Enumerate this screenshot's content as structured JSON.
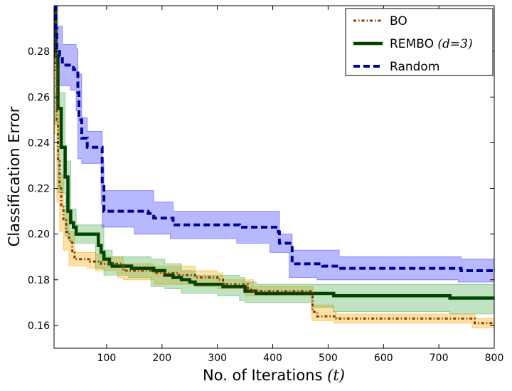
{
  "chart_data": {
    "type": "line",
    "xlabel": "No. of Iterations",
    "xlabel_math": "(t)",
    "ylabel": "Classification Error",
    "xlim": [
      5,
      800
    ],
    "ylim": [
      0.15,
      0.3
    ],
    "xticks": [
      100,
      200,
      300,
      400,
      500,
      600,
      700,
      800
    ],
    "yticks": [
      0.16,
      0.18,
      0.2,
      0.22,
      0.24,
      0.26,
      0.28
    ],
    "ytick_labels": [
      "0.16",
      "0.18",
      "0.20",
      "0.22",
      "0.24",
      "0.26",
      "0.28"
    ],
    "grid": false,
    "legend_position": "top-right",
    "series": [
      {
        "name": "BO",
        "line_color": "#8B3A00",
        "band_color": "#FFA500",
        "style": "dashdot",
        "points": [
          [
            5,
            0.3
          ],
          [
            8,
            0.272
          ],
          [
            10,
            0.25
          ],
          [
            12,
            0.232
          ],
          [
            15,
            0.22
          ],
          [
            18,
            0.212
          ],
          [
            22,
            0.206
          ],
          [
            27,
            0.201
          ],
          [
            32,
            0.197
          ],
          [
            38,
            0.192
          ],
          [
            42,
            0.189
          ],
          [
            65,
            0.189
          ],
          [
            70,
            0.188
          ],
          [
            80,
            0.188
          ],
          [
            90,
            0.187
          ],
          [
            100,
            0.187
          ],
          [
            120,
            0.187
          ],
          [
            130,
            0.184
          ],
          [
            160,
            0.184
          ],
          [
            175,
            0.184
          ],
          [
            185,
            0.183
          ],
          [
            230,
            0.182
          ],
          [
            260,
            0.181
          ],
          [
            300,
            0.18
          ],
          [
            310,
            0.178
          ],
          [
            350,
            0.178
          ],
          [
            355,
            0.176
          ],
          [
            365,
            0.175
          ],
          [
            470,
            0.175
          ],
          [
            472,
            0.166
          ],
          [
            480,
            0.164
          ],
          [
            510,
            0.164
          ],
          [
            515,
            0.163
          ],
          [
            760,
            0.163
          ],
          [
            765,
            0.161
          ],
          [
            800,
            0.161
          ]
        ],
        "band": [
          [
            5,
            0.3,
            0.3
          ],
          [
            10,
            0.244,
            0.256
          ],
          [
            15,
            0.214,
            0.226
          ],
          [
            22,
            0.201,
            0.211
          ],
          [
            32,
            0.193,
            0.201
          ],
          [
            42,
            0.186,
            0.192
          ],
          [
            65,
            0.186,
            0.192
          ],
          [
            80,
            0.185,
            0.191
          ],
          [
            100,
            0.184,
            0.19
          ],
          [
            120,
            0.184,
            0.19
          ],
          [
            130,
            0.181,
            0.187
          ],
          [
            185,
            0.18,
            0.186
          ],
          [
            260,
            0.178,
            0.184
          ],
          [
            300,
            0.177,
            0.183
          ],
          [
            310,
            0.176,
            0.18
          ],
          [
            350,
            0.176,
            0.18
          ],
          [
            365,
            0.173,
            0.177
          ],
          [
            470,
            0.173,
            0.177
          ],
          [
            472,
            0.163,
            0.169
          ],
          [
            510,
            0.162,
            0.166
          ],
          [
            515,
            0.161,
            0.165
          ],
          [
            760,
            0.161,
            0.165
          ],
          [
            765,
            0.159,
            0.163
          ],
          [
            800,
            0.159,
            0.163
          ]
        ]
      },
      {
        "name": "REMBO",
        "name_math": "(d=3)",
        "line_color": "#004400",
        "band_color": "#4CAF50",
        "style": "solid",
        "points": [
          [
            5,
            0.3
          ],
          [
            8,
            0.278
          ],
          [
            12,
            0.255
          ],
          [
            18,
            0.238
          ],
          [
            25,
            0.225
          ],
          [
            30,
            0.21
          ],
          [
            35,
            0.205
          ],
          [
            40,
            0.203
          ],
          [
            45,
            0.2
          ],
          [
            80,
            0.2
          ],
          [
            85,
            0.195
          ],
          [
            90,
            0.192
          ],
          [
            95,
            0.189
          ],
          [
            105,
            0.187
          ],
          [
            110,
            0.186
          ],
          [
            140,
            0.186
          ],
          [
            145,
            0.185
          ],
          [
            180,
            0.185
          ],
          [
            185,
            0.184
          ],
          [
            200,
            0.184
          ],
          [
            205,
            0.182
          ],
          [
            220,
            0.181
          ],
          [
            235,
            0.18
          ],
          [
            250,
            0.179
          ],
          [
            260,
            0.178
          ],
          [
            300,
            0.178
          ],
          [
            310,
            0.177
          ],
          [
            340,
            0.177
          ],
          [
            350,
            0.175
          ],
          [
            360,
            0.175
          ],
          [
            370,
            0.174
          ],
          [
            470,
            0.174
          ],
          [
            510,
            0.173
          ],
          [
            720,
            0.172
          ],
          [
            800,
            0.172
          ]
        ],
        "band": [
          [
            5,
            0.3,
            0.3
          ],
          [
            12,
            0.248,
            0.262
          ],
          [
            25,
            0.218,
            0.232
          ],
          [
            35,
            0.199,
            0.211
          ],
          [
            45,
            0.196,
            0.204
          ],
          [
            80,
            0.196,
            0.204
          ],
          [
            95,
            0.185,
            0.193
          ],
          [
            110,
            0.182,
            0.19
          ],
          [
            140,
            0.182,
            0.19
          ],
          [
            180,
            0.181,
            0.189
          ],
          [
            205,
            0.177,
            0.187
          ],
          [
            235,
            0.176,
            0.184
          ],
          [
            260,
            0.174,
            0.182
          ],
          [
            300,
            0.174,
            0.182
          ],
          [
            340,
            0.173,
            0.181
          ],
          [
            350,
            0.171,
            0.179
          ],
          [
            370,
            0.17,
            0.178
          ],
          [
            470,
            0.17,
            0.178
          ],
          [
            510,
            0.168,
            0.178
          ],
          [
            720,
            0.166,
            0.178
          ],
          [
            800,
            0.165,
            0.177
          ]
        ]
      },
      {
        "name": "Random",
        "line_color": "#00009A",
        "band_color": "#3333FF",
        "style": "dashed",
        "points": [
          [
            5,
            0.3
          ],
          [
            8,
            0.29
          ],
          [
            10,
            0.28
          ],
          [
            15,
            0.278
          ],
          [
            20,
            0.274
          ],
          [
            35,
            0.274
          ],
          [
            40,
            0.272
          ],
          [
            45,
            0.272
          ],
          [
            48,
            0.262
          ],
          [
            50,
            0.25
          ],
          [
            55,
            0.242
          ],
          [
            65,
            0.238
          ],
          [
            80,
            0.238
          ],
          [
            85,
            0.238
          ],
          [
            90,
            0.238
          ],
          [
            92,
            0.222
          ],
          [
            95,
            0.21
          ],
          [
            100,
            0.21
          ],
          [
            150,
            0.21
          ],
          [
            175,
            0.209
          ],
          [
            185,
            0.207
          ],
          [
            215,
            0.207
          ],
          [
            220,
            0.204
          ],
          [
            335,
            0.204
          ],
          [
            340,
            0.203
          ],
          [
            395,
            0.203
          ],
          [
            410,
            0.201
          ],
          [
            412,
            0.196
          ],
          [
            430,
            0.196
          ],
          [
            435,
            0.187
          ],
          [
            480,
            0.187
          ],
          [
            490,
            0.186
          ],
          [
            510,
            0.186
          ],
          [
            520,
            0.185
          ],
          [
            735,
            0.185
          ],
          [
            740,
            0.184
          ],
          [
            800,
            0.184
          ]
        ],
        "band": [
          [
            5,
            0.3,
            0.3
          ],
          [
            10,
            0.275,
            0.291
          ],
          [
            20,
            0.265,
            0.283
          ],
          [
            35,
            0.265,
            0.283
          ],
          [
            45,
            0.263,
            0.281
          ],
          [
            48,
            0.254,
            0.27
          ],
          [
            55,
            0.233,
            0.251
          ],
          [
            65,
            0.231,
            0.245
          ],
          [
            90,
            0.231,
            0.245
          ],
          [
            92,
            0.213,
            0.231
          ],
          [
            95,
            0.203,
            0.219
          ],
          [
            150,
            0.203,
            0.219
          ],
          [
            185,
            0.2,
            0.214
          ],
          [
            215,
            0.2,
            0.214
          ],
          [
            220,
            0.198,
            0.21
          ],
          [
            335,
            0.198,
            0.21
          ],
          [
            340,
            0.196,
            0.21
          ],
          [
            395,
            0.196,
            0.21
          ],
          [
            412,
            0.192,
            0.2
          ],
          [
            430,
            0.192,
            0.2
          ],
          [
            435,
            0.181,
            0.193
          ],
          [
            480,
            0.181,
            0.193
          ],
          [
            520,
            0.18,
            0.19
          ],
          [
            735,
            0.18,
            0.19
          ],
          [
            740,
            0.179,
            0.189
          ],
          [
            800,
            0.179,
            0.189
          ]
        ]
      }
    ]
  }
}
